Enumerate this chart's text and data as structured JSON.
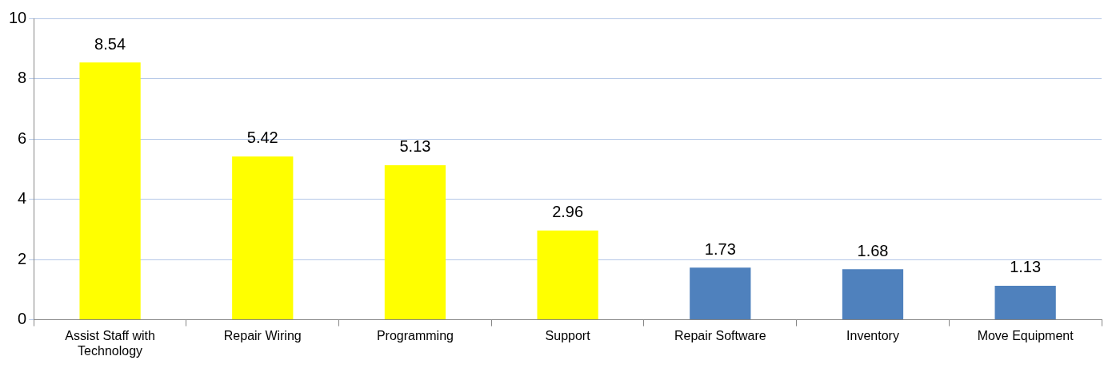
{
  "chart_data": {
    "type": "bar",
    "categories": [
      "Assist Staff with Technology",
      "Repair Wiring",
      "Programming",
      "Support",
      "Repair Software",
      "Inventory",
      "Move Equipment"
    ],
    "values": [
      8.54,
      5.42,
      5.13,
      2.96,
      1.73,
      1.68,
      1.13
    ],
    "colors": [
      "#ffff00",
      "#ffff00",
      "#ffff00",
      "#ffff00",
      "#4f81bd",
      "#4f81bd",
      "#4f81bd"
    ],
    "ylim": [
      0,
      10
    ],
    "yticks": [
      0,
      2,
      4,
      6,
      8,
      10
    ],
    "grid": "y",
    "data_labels": true,
    "legend": false
  }
}
